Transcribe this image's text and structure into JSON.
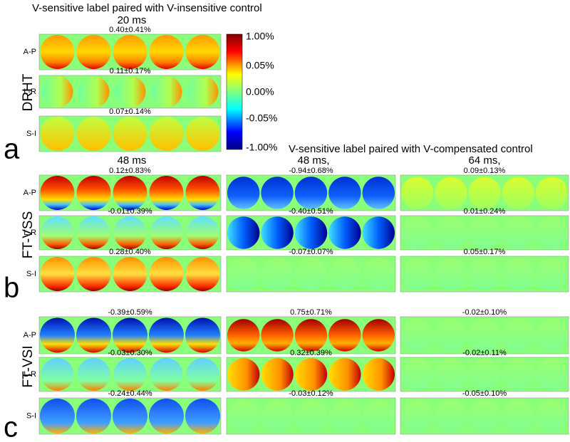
{
  "panel_a": {
    "letter": "a",
    "title": "V-sensitive label paired with V-insensitive control",
    "header": "20 ms",
    "row_label": "DRHT",
    "strips": [
      {
        "axis": "A-P",
        "stat": "0.40±0.41%"
      },
      {
        "axis": "L-R",
        "stat": "0.11±0.17%"
      },
      {
        "axis": "S-I",
        "stat": "0.07±0.14%"
      }
    ]
  },
  "colorbar": {
    "labels": [
      "1.00%",
      "0.05%",
      "0.00%",
      "-0.05%",
      "-1.00%"
    ]
  },
  "panel_b": {
    "letter": "b",
    "title": "V-sensitive label paired with V-compensated control",
    "row_label": "FT-VSS",
    "columns": [
      {
        "header": "48 ms",
        "strips": [
          {
            "axis": "A-P",
            "stat": "0.12±0.83%"
          },
          {
            "axis": "L-R",
            "stat": "-0.01±0.39%"
          },
          {
            "axis": "S-I",
            "stat": "0.28±0.40%"
          }
        ]
      },
      {
        "header": "48 ms,",
        "strips": [
          {
            "stat": "-0.94±0.68%"
          },
          {
            "stat": "-0.40±0.51%"
          },
          {
            "stat": "-0.07±0.07%"
          }
        ]
      },
      {
        "header": "64 ms,",
        "strips": [
          {
            "stat": "0.09±0.13%"
          },
          {
            "stat": "0.01±0.24%"
          },
          {
            "stat": "0.05±0.17%"
          }
        ]
      }
    ]
  },
  "panel_c": {
    "letter": "c",
    "row_label": "FT-VSI",
    "columns": [
      {
        "strips": [
          {
            "axis": "A-P",
            "stat": "-0.39±0.59%"
          },
          {
            "axis": "L-R",
            "stat": "-0.03±0.30%"
          },
          {
            "axis": "S-I",
            "stat": "-0.24±0.44%"
          }
        ]
      },
      {
        "strips": [
          {
            "stat": "0.75±0.71%"
          },
          {
            "stat": "0.32±0.39%"
          },
          {
            "stat": "-0.03±0.12%"
          }
        ]
      },
      {
        "strips": [
          {
            "stat": "-0.02±0.10%"
          },
          {
            "stat": "-0.02±0.11%"
          },
          {
            "stat": "-0.05±0.10%"
          }
        ]
      }
    ]
  }
}
